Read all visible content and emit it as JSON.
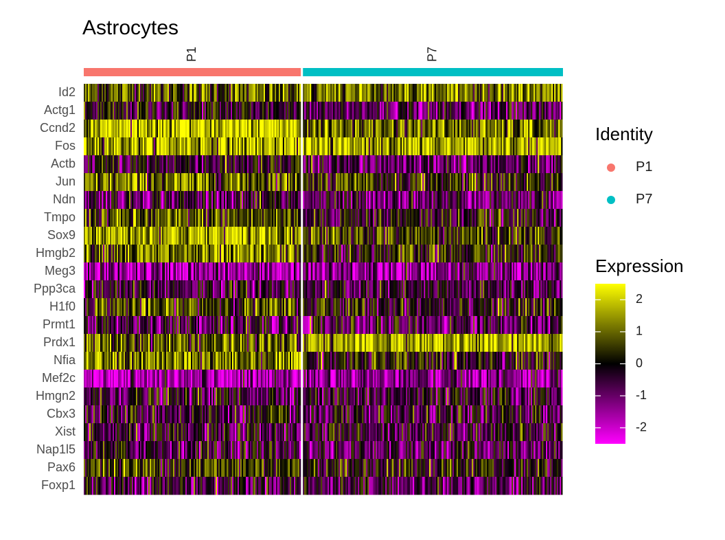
{
  "chart_data": {
    "type": "heatmap",
    "title": "Astrocytes",
    "genes": [
      "Id2",
      "Actg1",
      "Ccnd2",
      "Fos",
      "Actb",
      "Jun",
      "Ndn",
      "Tmpo",
      "Sox9",
      "Hmgb2",
      "Meg3",
      "Ppp3ca",
      "H1f0",
      "Prmt1",
      "Prdx1",
      "Nfia",
      "Mef2c",
      "Hmgn2",
      "Cbx3",
      "Xist",
      "Nap1l5",
      "Pax6",
      "Foxp1"
    ],
    "groups": [
      {
        "name": "P1",
        "color": "#F8766D",
        "cell_fraction": 0.455
      },
      {
        "name": "P7",
        "color": "#00BFC4",
        "cell_fraction": 0.545
      }
    ],
    "mean_expression": {
      "P1": [
        0.8,
        -0.2,
        2.0,
        1.7,
        -0.3,
        1.0,
        -0.6,
        0.6,
        1.7,
        1.0,
        -1.6,
        -0.5,
        0.6,
        -0.5,
        0.8,
        1.1,
        -1.8,
        -0.4,
        -0.3,
        -0.6,
        -0.4,
        0.6,
        -0.4
      ],
      "P7": [
        1.2,
        -0.8,
        1.0,
        1.6,
        -0.9,
        0.3,
        -0.8,
        -0.1,
        0.5,
        0.2,
        -1.2,
        -0.6,
        0.0,
        -0.7,
        1.6,
        0.1,
        -1.4,
        -0.5,
        -0.5,
        -0.3,
        -0.7,
        0.2,
        -0.7
      ]
    },
    "legend": {
      "identity_title": "Identity",
      "expression_title": "Expression",
      "color_ticks": [
        "2",
        "1",
        "0",
        "-1",
        "-2"
      ],
      "color_range": [
        -2.5,
        2.5
      ],
      "colors": {
        "low": "#FF00FF",
        "mid": "#000000",
        "high": "#FFFF00"
      }
    }
  }
}
